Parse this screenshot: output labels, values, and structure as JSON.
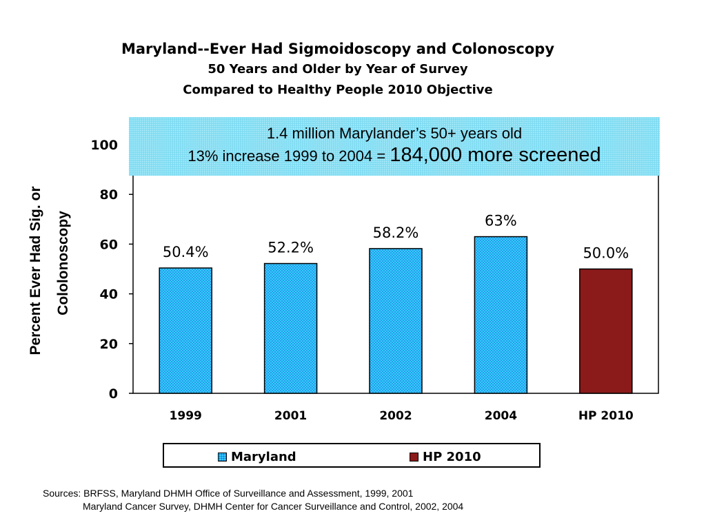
{
  "title": {
    "line1": "Maryland--Ever Had Sigmoidoscopy and Colonoscopy",
    "line2": "50 Years and Older by Year of Survey",
    "line3": "Compared to Healthy People 2010 Objective"
  },
  "callout": {
    "line1": "1.4 million Marylander’s 50+ years old",
    "line2_prefix": "13% increase 1999 to 2004 = ",
    "line2_emphasis": "184,000 more screened"
  },
  "chart_data": {
    "type": "bar",
    "title": "Maryland--Ever Had Sigmoidoscopy and Colonoscopy",
    "subtitle": "50 Years and Older by Year of Survey / Compared to Healthy People 2010 Objective",
    "ylabel_lines": [
      "Percent Ever Had Sig. or",
      "Cololonoscopy"
    ],
    "xlabel": "",
    "ylim": [
      0,
      100
    ],
    "yticks": [
      0,
      20,
      40,
      60,
      80,
      100
    ],
    "categories": [
      "1999",
      "2001",
      "2002",
      "2004",
      "HP 2010"
    ],
    "values": [
      50.4,
      52.2,
      58.2,
      63,
      50
    ],
    "data_labels": [
      "50.4%",
      "52.2%",
      "58.2%",
      "63%",
      "50.0%"
    ],
    "series_of_bar": [
      0,
      0,
      0,
      0,
      1
    ],
    "series": [
      {
        "name": "Maryland",
        "color": "#33ccff"
      },
      {
        "name": "HP 2010",
        "color": "#8b1a1a"
      }
    ],
    "grid": false,
    "legend_position": "bottom"
  },
  "sources": {
    "line1": "Sources: BRFSS, Maryland DHMH Office of Surveillance and Assessment, 1999, 2001",
    "line2": "Maryland Cancer Survey, DHMH Center for Cancer Surveillance and Control, 2002, 2004"
  }
}
